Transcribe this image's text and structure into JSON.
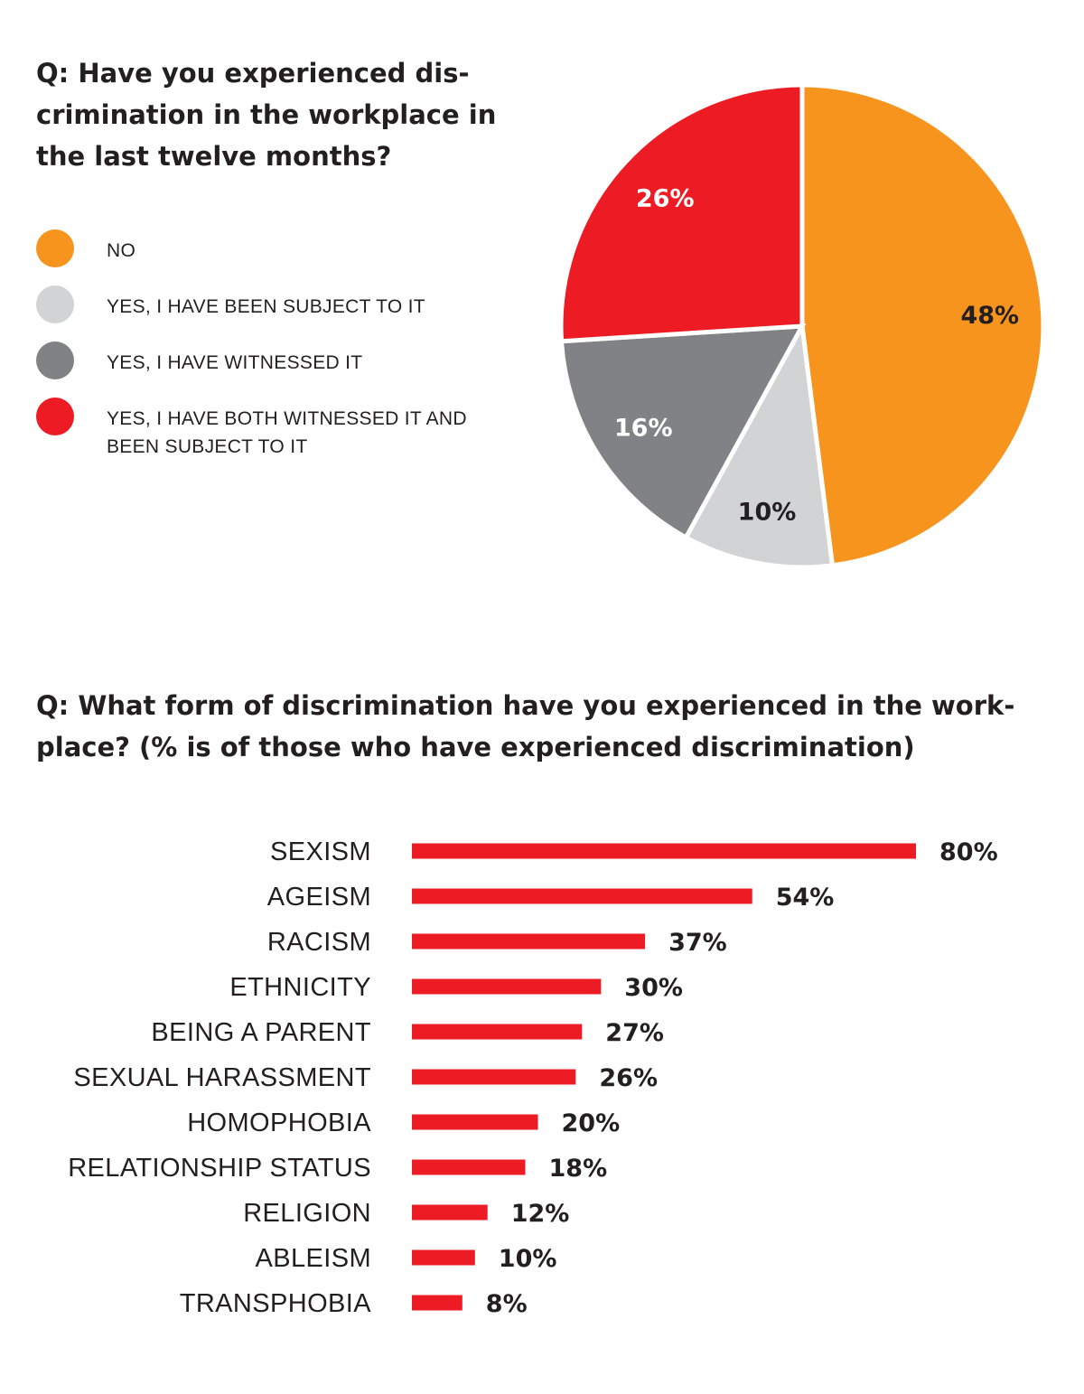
{
  "chart_data": [
    {
      "type": "pie",
      "title": "Q: Have you experienced dis-crimination in the workplace in the last twelve months?",
      "slices": [
        {
          "label": "NO",
          "value": 48,
          "value_label": "48%",
          "color": "#f7941d"
        },
        {
          "label": "YES, I HAVE BEEN SUBJECT TO IT",
          "value": 10,
          "value_label": "10%",
          "color": "#d1d3d4"
        },
        {
          "label": "YES, I HAVE WITNESSED IT",
          "value": 16,
          "value_label": "16%",
          "color": "#808285"
        },
        {
          "label": "YES, I HAVE BOTH WITNESSED IT AND BEEN SUBJECT TO IT",
          "value": 26,
          "value_label": "26%",
          "color": "#ed1c24"
        }
      ],
      "legend_position": "left"
    },
    {
      "type": "bar",
      "orientation": "horizontal",
      "title": "Q: What form of discrimination have you experienced in the work-place? (% is of those who have experienced discrimination)",
      "categories": [
        "SEXISM",
        "AGEISM",
        "RACISM",
        "ETHNICITY",
        "BEING A PARENT",
        "SEXUAL HARASSMENT",
        "HOMOPHOBIA",
        "RELATIONSHIP STATUS",
        "RELIGION",
        "ABLEISM",
        "TRANSPHOBIA"
      ],
      "values": [
        80,
        54,
        37,
        30,
        27,
        26,
        20,
        18,
        12,
        10,
        8
      ],
      "value_labels": [
        "80%",
        "54%",
        "37%",
        "30%",
        "27%",
        "26%",
        "20%",
        "18%",
        "12%",
        "10%",
        "8%"
      ],
      "bar_color": "#ed1c24",
      "xlim": [
        0,
        80
      ],
      "grid": false
    }
  ]
}
